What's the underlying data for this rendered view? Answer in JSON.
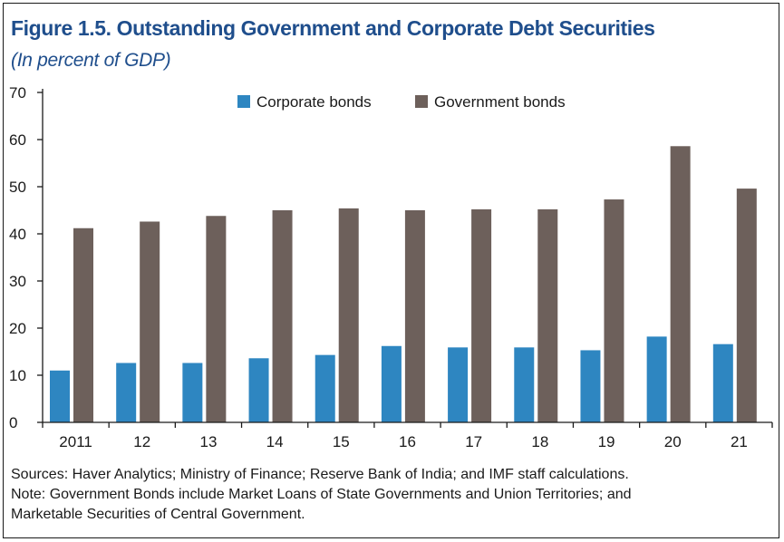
{
  "title": "Figure 1.5. Outstanding Government and Corporate Debt Securities",
  "subtitle": "(In percent of GDP)",
  "colors": {
    "title": "#1f4e8c",
    "corporate": "#2e86c1",
    "government": "#6d605b"
  },
  "chart_data": {
    "type": "bar",
    "categories": [
      "2011",
      "12",
      "13",
      "14",
      "15",
      "16",
      "17",
      "18",
      "19",
      "20",
      "21"
    ],
    "series": [
      {
        "name": "Corporate bonds",
        "values": [
          11.0,
          12.6,
          12.6,
          13.6,
          14.3,
          16.2,
          15.9,
          15.9,
          15.3,
          18.2,
          16.6
        ]
      },
      {
        "name": "Government bonds",
        "values": [
          41.2,
          42.6,
          43.8,
          45.0,
          45.4,
          45.0,
          45.2,
          45.2,
          47.3,
          58.6,
          49.6
        ]
      }
    ],
    "yticks": [
      "0",
      "10",
      "20",
      "30",
      "40",
      "50",
      "60",
      "70"
    ],
    "ylim": [
      0,
      70
    ],
    "legend": "top-center",
    "grid": false
  },
  "notes": {
    "sources": "Sources: Haver Analytics; Ministry of Finance; Reserve Bank of India; and IMF staff calculations.",
    "note_line1": "Note: Government Bonds include Market Loans of State Governments and Union Territories; and",
    "note_line2": "Marketable Securities of Central Government."
  }
}
